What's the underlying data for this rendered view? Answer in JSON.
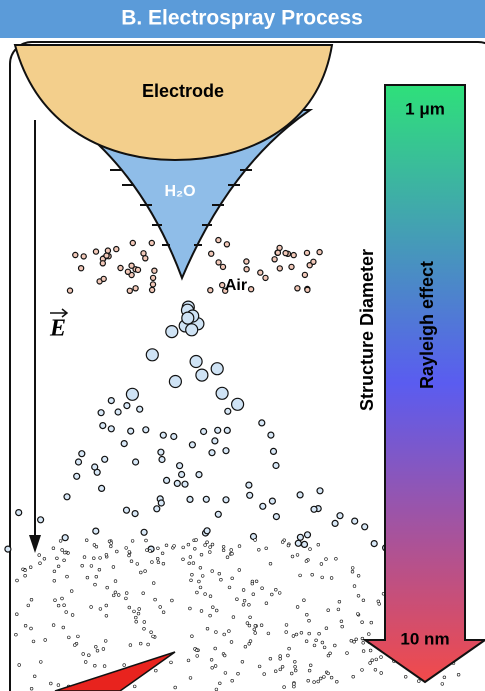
{
  "title": "B. Electrospray Process",
  "labels": {
    "electrode": "Electrode",
    "water": "H₂O",
    "air": "Air",
    "field": "E",
    "structure_diameter": "Structure Diameter",
    "rayleigh": "Rayleigh effect",
    "top_size": "1 μm",
    "bottom_size": "10 nm"
  }
}
